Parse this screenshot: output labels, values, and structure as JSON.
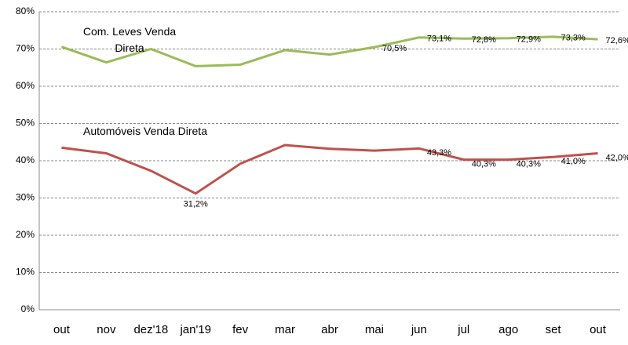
{
  "chart_data": {
    "type": "line",
    "categories": [
      "out",
      "nov",
      "dez'18",
      "jan'19",
      "fev",
      "mar",
      "abr",
      "mai",
      "jun",
      "jul",
      "ago",
      "set",
      "out"
    ],
    "series": [
      {
        "name": "Com. Leves Venda Direta",
        "color": "#9bbb59",
        "values": [
          70.6,
          66.4,
          70.0,
          65.4,
          65.8,
          69.7,
          68.5,
          70.5,
          73.1,
          72.8,
          72.9,
          73.3,
          72.6
        ],
        "value_labels": [
          null,
          null,
          null,
          null,
          null,
          null,
          null,
          "70,5%",
          "73,1%",
          "72,8%",
          "72,9%",
          "73,3%",
          "72,6%"
        ]
      },
      {
        "name": "Automóveis Venda Direta",
        "color": "#c0504d",
        "values": [
          43.5,
          42.0,
          37.3,
          31.2,
          39.2,
          44.2,
          43.2,
          42.7,
          43.3,
          40.3,
          40.3,
          41.0,
          42.0
        ],
        "value_labels": [
          null,
          null,
          null,
          "31,2%",
          null,
          null,
          null,
          null,
          "43,3%",
          "40,3%",
          "40,3%",
          "41,0%",
          "42,0%"
        ]
      }
    ],
    "ylim": [
      0,
      80
    ],
    "yticks": [
      {
        "value": 0,
        "label": "0%"
      },
      {
        "value": 10,
        "label": "10%"
      },
      {
        "value": 20,
        "label": "20%"
      },
      {
        "value": 30,
        "label": "30%"
      },
      {
        "value": 40,
        "label": "40%"
      },
      {
        "value": 50,
        "label": "50%"
      },
      {
        "value": 60,
        "label": "60%"
      },
      {
        "value": 70,
        "label": "70%"
      },
      {
        "value": 80,
        "label": "80%"
      }
    ],
    "grid": true
  }
}
